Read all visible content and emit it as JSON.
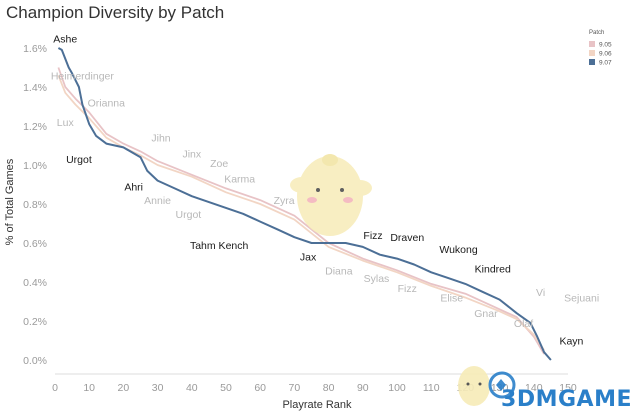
{
  "title": "Champion Diversity by Patch",
  "watermark": "3DMGAME",
  "chart_data": {
    "type": "line",
    "xlabel": "Playrate Rank",
    "ylabel": "% of Total Games",
    "xlim": [
      0,
      150
    ],
    "ylim": [
      0,
      1.6
    ],
    "xticks": [
      0,
      10,
      20,
      30,
      40,
      50,
      60,
      70,
      80,
      90,
      100,
      110,
      120,
      130,
      140,
      150
    ],
    "yticks": [
      0,
      0.2,
      0.4,
      0.6,
      0.8,
      1.0,
      1.2,
      1.4,
      1.6
    ],
    "ytick_labels": [
      "0.0%",
      "0.2%",
      "0.4%",
      "0.6%",
      "0.8%",
      "1.0%",
      "1.2%",
      "1.4%",
      "1.6%"
    ],
    "grid": false,
    "legend": {
      "title": "Patch",
      "position": "top-right"
    },
    "series": [
      {
        "name": "9.05",
        "color": "#e8c3c6",
        "points": [
          [
            1,
            1.5
          ],
          [
            3,
            1.4
          ],
          [
            6,
            1.34
          ],
          [
            10,
            1.27
          ],
          [
            15,
            1.16
          ],
          [
            20,
            1.11
          ],
          [
            25,
            1.07
          ],
          [
            30,
            1.02
          ],
          [
            40,
            0.95
          ],
          [
            50,
            0.88
          ],
          [
            60,
            0.82
          ],
          [
            70,
            0.74
          ],
          [
            80,
            0.6
          ],
          [
            90,
            0.52
          ],
          [
            100,
            0.46
          ],
          [
            110,
            0.39
          ],
          [
            120,
            0.34
          ],
          [
            130,
            0.26
          ],
          [
            135,
            0.22
          ],
          [
            140,
            0.12
          ],
          [
            143,
            0.03
          ]
        ]
      },
      {
        "name": "9.06",
        "color": "#f2d5c4",
        "points": [
          [
            1,
            1.46
          ],
          [
            3,
            1.37
          ],
          [
            6,
            1.31
          ],
          [
            10,
            1.24
          ],
          [
            15,
            1.14
          ],
          [
            20,
            1.09
          ],
          [
            25,
            1.05
          ],
          [
            30,
            1.0
          ],
          [
            40,
            0.94
          ],
          [
            50,
            0.86
          ],
          [
            60,
            0.8
          ],
          [
            70,
            0.72
          ],
          [
            80,
            0.58
          ],
          [
            90,
            0.51
          ],
          [
            100,
            0.45
          ],
          [
            110,
            0.38
          ],
          [
            120,
            0.32
          ],
          [
            130,
            0.25
          ],
          [
            135,
            0.21
          ],
          [
            140,
            0.13
          ],
          [
            143,
            0.05
          ]
        ]
      },
      {
        "name": "9.07",
        "color": "#4c6f96",
        "points": [
          [
            1,
            1.6
          ],
          [
            2,
            1.59
          ],
          [
            4,
            1.5
          ],
          [
            5,
            1.47
          ],
          [
            7,
            1.4
          ],
          [
            8,
            1.31
          ],
          [
            10,
            1.21
          ],
          [
            12,
            1.15
          ],
          [
            15,
            1.11
          ],
          [
            20,
            1.09
          ],
          [
            25,
            1.04
          ],
          [
            27,
            0.97
          ],
          [
            30,
            0.92
          ],
          [
            35,
            0.88
          ],
          [
            40,
            0.84
          ],
          [
            50,
            0.78
          ],
          [
            55,
            0.75
          ],
          [
            60,
            0.71
          ],
          [
            65,
            0.67
          ],
          [
            70,
            0.63
          ],
          [
            75,
            0.6
          ],
          [
            80,
            0.6
          ],
          [
            85,
            0.6
          ],
          [
            90,
            0.58
          ],
          [
            95,
            0.54
          ],
          [
            100,
            0.52
          ],
          [
            105,
            0.49
          ],
          [
            110,
            0.45
          ],
          [
            115,
            0.42
          ],
          [
            120,
            0.39
          ],
          [
            125,
            0.35
          ],
          [
            130,
            0.31
          ],
          [
            135,
            0.24
          ],
          [
            139,
            0.19
          ],
          [
            141,
            0.12
          ],
          [
            143,
            0.04
          ],
          [
            145,
            0.0
          ]
        ]
      }
    ],
    "annotations": [
      {
        "text": "Ashe",
        "x": 3,
        "y": 1.65,
        "tone": "dark"
      },
      {
        "text": "Heimerdinger",
        "x": 8,
        "y": 1.46,
        "tone": "light"
      },
      {
        "text": "Orianna",
        "x": 15,
        "y": 1.32,
        "tone": "light"
      },
      {
        "text": "Lux",
        "x": 3,
        "y": 1.22,
        "tone": "light"
      },
      {
        "text": "Jihn",
        "x": 31,
        "y": 1.14,
        "tone": "light"
      },
      {
        "text": "Urgot",
        "x": 7,
        "y": 1.03,
        "tone": "dark"
      },
      {
        "text": "Jinx",
        "x": 40,
        "y": 1.06,
        "tone": "light"
      },
      {
        "text": "Zoe",
        "x": 48,
        "y": 1.01,
        "tone": "light"
      },
      {
        "text": "Karma",
        "x": 54,
        "y": 0.93,
        "tone": "light"
      },
      {
        "text": "Ahri",
        "x": 23,
        "y": 0.89,
        "tone": "dark"
      },
      {
        "text": "Annie",
        "x": 30,
        "y": 0.82,
        "tone": "light"
      },
      {
        "text": "Zyra",
        "x": 67,
        "y": 0.82,
        "tone": "light"
      },
      {
        "text": "Urgot",
        "x": 39,
        "y": 0.75,
        "tone": "light"
      },
      {
        "text": "Tahm Kench",
        "x": 48,
        "y": 0.59,
        "tone": "dark"
      },
      {
        "text": "Fizz",
        "x": 93,
        "y": 0.64,
        "tone": "dark"
      },
      {
        "text": "Draven",
        "x": 103,
        "y": 0.63,
        "tone": "dark"
      },
      {
        "text": "Wukong",
        "x": 118,
        "y": 0.57,
        "tone": "dark"
      },
      {
        "text": "Jax",
        "x": 74,
        "y": 0.53,
        "tone": "dark"
      },
      {
        "text": "Diana",
        "x": 83,
        "y": 0.46,
        "tone": "light"
      },
      {
        "text": "Kindred",
        "x": 128,
        "y": 0.47,
        "tone": "dark"
      },
      {
        "text": "Sylas",
        "x": 94,
        "y": 0.42,
        "tone": "light"
      },
      {
        "text": "Fizz",
        "x": 103,
        "y": 0.37,
        "tone": "light"
      },
      {
        "text": "Elise",
        "x": 116,
        "y": 0.32,
        "tone": "light"
      },
      {
        "text": "Vi",
        "x": 142,
        "y": 0.35,
        "tone": "light"
      },
      {
        "text": "Sejuani",
        "x": 154,
        "y": 0.32,
        "tone": "light"
      },
      {
        "text": "Gnar",
        "x": 126,
        "y": 0.24,
        "tone": "light"
      },
      {
        "text": "Olaf",
        "x": 137,
        "y": 0.19,
        "tone": "light"
      },
      {
        "text": "Kayn",
        "x": 151,
        "y": 0.1,
        "tone": "dark"
      }
    ]
  }
}
